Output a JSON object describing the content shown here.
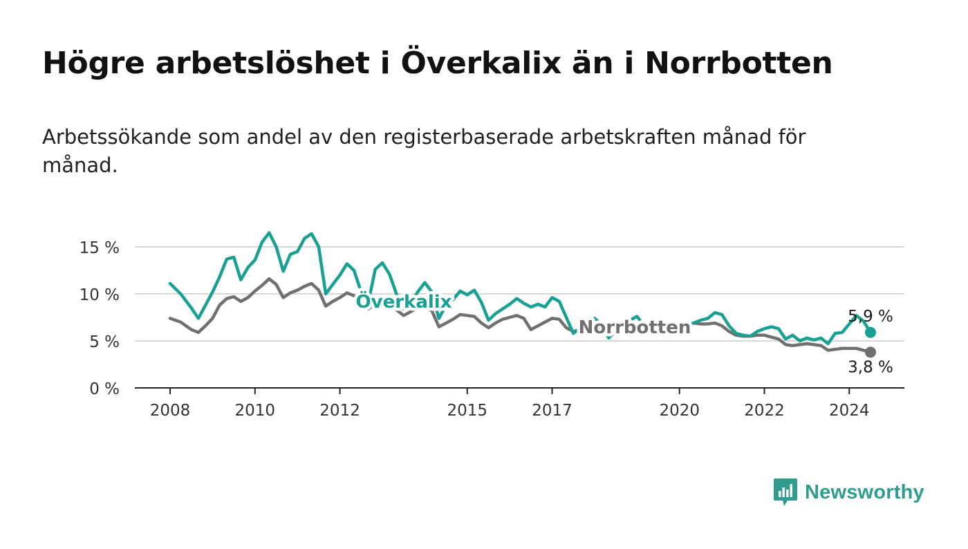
{
  "header": {
    "title": "Högre arbetslöshet i Överkalix än i Norrbotten",
    "subtitle": "Arbetssökande som andel av den registerbaserade arbetskraften månad för månad."
  },
  "brand": {
    "name": "Newsworthy",
    "icon": "bar-chart-icon",
    "color": "#2f9d8e"
  },
  "chart_data": {
    "type": "line",
    "title": "",
    "xlabel": "",
    "ylabel": "",
    "x_unit": "month",
    "xlim": [
      "2008-01",
      "2024-12"
    ],
    "ylim": [
      0,
      16
    ],
    "y_ticks": [
      0,
      5,
      10,
      15
    ],
    "y_tick_labels": [
      "0 %",
      "5 %",
      "10 %",
      "15 %"
    ],
    "x_ticks": [
      "2008-01",
      "2010-01",
      "2012-01",
      "2015-01",
      "2017-01",
      "2020-01",
      "2022-01",
      "2024-01"
    ],
    "x_tick_labels": [
      "2008",
      "2010",
      "2012",
      "2015",
      "2017",
      "2020",
      "2022",
      "2024"
    ],
    "grid": true,
    "legend": "inline labels",
    "series": [
      {
        "name": "Överkalix",
        "color": "#18a092",
        "end_label": "5,9 %",
        "points": [
          [
            "2008-01",
            11.1
          ],
          [
            "2008-04",
            10.0
          ],
          [
            "2008-07",
            8.5
          ],
          [
            "2008-09",
            7.4
          ],
          [
            "2008-11",
            8.8
          ],
          [
            "2009-01",
            10.2
          ],
          [
            "2009-03",
            11.8
          ],
          [
            "2009-05",
            13.7
          ],
          [
            "2009-07",
            13.9
          ],
          [
            "2009-09",
            11.5
          ],
          [
            "2009-11",
            12.8
          ],
          [
            "2010-01",
            13.6
          ],
          [
            "2010-03",
            15.5
          ],
          [
            "2010-05",
            16.5
          ],
          [
            "2010-07",
            15.0
          ],
          [
            "2010-09",
            12.4
          ],
          [
            "2010-11",
            14.2
          ],
          [
            "2011-01",
            14.5
          ],
          [
            "2011-03",
            15.9
          ],
          [
            "2011-05",
            16.4
          ],
          [
            "2011-07",
            15.0
          ],
          [
            "2011-09",
            10.0
          ],
          [
            "2011-11",
            11.0
          ],
          [
            "2012-01",
            12.0
          ],
          [
            "2012-03",
            13.2
          ],
          [
            "2012-05",
            12.5
          ],
          [
            "2012-07",
            10.2
          ],
          [
            "2012-09",
            9.0
          ],
          [
            "2012-11",
            12.6
          ],
          [
            "2013-01",
            13.3
          ],
          [
            "2013-03",
            12.1
          ],
          [
            "2013-05",
            10.0
          ],
          [
            "2013-07",
            8.4
          ],
          [
            "2013-09",
            9.0
          ],
          [
            "2013-11",
            10.2
          ],
          [
            "2014-01",
            11.2
          ],
          [
            "2014-03",
            10.2
          ],
          [
            "2014-05",
            7.4
          ],
          [
            "2014-07",
            8.8
          ],
          [
            "2014-09",
            9.4
          ],
          [
            "2014-11",
            10.3
          ],
          [
            "2015-01",
            9.9
          ],
          [
            "2015-03",
            10.4
          ],
          [
            "2015-05",
            9.1
          ],
          [
            "2015-07",
            7.2
          ],
          [
            "2015-09",
            7.9
          ],
          [
            "2015-11",
            8.4
          ],
          [
            "2016-01",
            8.9
          ],
          [
            "2016-03",
            9.5
          ],
          [
            "2016-05",
            9.0
          ],
          [
            "2016-07",
            8.6
          ],
          [
            "2016-09",
            8.9
          ],
          [
            "2016-11",
            8.6
          ],
          [
            "2017-01",
            9.6
          ],
          [
            "2017-03",
            9.2
          ],
          [
            "2017-05",
            7.5
          ],
          [
            "2017-07",
            5.8
          ],
          [
            "2017-09",
            6.4
          ],
          [
            "2017-11",
            7.0
          ],
          [
            "2018-01",
            7.4
          ],
          [
            "2018-03",
            6.7
          ],
          [
            "2018-05",
            5.3
          ],
          [
            "2018-07",
            6.1
          ],
          [
            "2018-09",
            6.7
          ],
          [
            "2018-11",
            7.2
          ],
          [
            "2019-01",
            7.6
          ],
          [
            "2019-03",
            6.6
          ],
          [
            "2019-05",
            5.9
          ],
          [
            "2019-07",
            6.3
          ],
          [
            "2019-09",
            6.8
          ],
          [
            "2019-11",
            6.6
          ],
          [
            "2020-01",
            6.4
          ],
          [
            "2020-03",
            6.6
          ],
          [
            "2020-05",
            6.9
          ],
          [
            "2020-07",
            7.2
          ],
          [
            "2020-09",
            7.4
          ],
          [
            "2020-11",
            8.0
          ],
          [
            "2021-01",
            7.8
          ],
          [
            "2021-03",
            6.6
          ],
          [
            "2021-05",
            5.8
          ],
          [
            "2021-07",
            5.6
          ],
          [
            "2021-09",
            5.5
          ],
          [
            "2021-11",
            6.0
          ],
          [
            "2022-01",
            6.3
          ],
          [
            "2022-03",
            6.5
          ],
          [
            "2022-05",
            6.3
          ],
          [
            "2022-07",
            5.2
          ],
          [
            "2022-09",
            5.6
          ],
          [
            "2022-11",
            5.0
          ],
          [
            "2023-01",
            5.3
          ],
          [
            "2023-03",
            5.1
          ],
          [
            "2023-05",
            5.3
          ],
          [
            "2023-07",
            4.7
          ],
          [
            "2023-09",
            5.8
          ],
          [
            "2023-11",
            5.9
          ],
          [
            "2024-01",
            6.8
          ],
          [
            "2024-03",
            7.7
          ],
          [
            "2024-05",
            7.1
          ],
          [
            "2024-07",
            5.9
          ]
        ]
      },
      {
        "name": "Norrbotten",
        "color": "#707070",
        "end_label": "3,8 %",
        "points": [
          [
            "2008-01",
            7.4
          ],
          [
            "2008-04",
            7.0
          ],
          [
            "2008-07",
            6.2
          ],
          [
            "2008-09",
            5.9
          ],
          [
            "2008-11",
            6.6
          ],
          [
            "2009-01",
            7.4
          ],
          [
            "2009-03",
            8.8
          ],
          [
            "2009-05",
            9.5
          ],
          [
            "2009-07",
            9.7
          ],
          [
            "2009-09",
            9.2
          ],
          [
            "2009-11",
            9.6
          ],
          [
            "2010-01",
            10.3
          ],
          [
            "2010-03",
            10.9
          ],
          [
            "2010-05",
            11.6
          ],
          [
            "2010-07",
            11.0
          ],
          [
            "2010-09",
            9.6
          ],
          [
            "2010-11",
            10.1
          ],
          [
            "2011-01",
            10.4
          ],
          [
            "2011-03",
            10.8
          ],
          [
            "2011-05",
            11.1
          ],
          [
            "2011-07",
            10.4
          ],
          [
            "2011-09",
            8.7
          ],
          [
            "2011-11",
            9.2
          ],
          [
            "2012-01",
            9.6
          ],
          [
            "2012-03",
            10.1
          ],
          [
            "2012-05",
            9.8
          ],
          [
            "2012-07",
            9.2
          ],
          [
            "2012-09",
            8.4
          ],
          [
            "2012-11",
            8.9
          ],
          [
            "2013-01",
            9.3
          ],
          [
            "2013-03",
            9.0
          ],
          [
            "2013-05",
            8.3
          ],
          [
            "2013-07",
            7.7
          ],
          [
            "2013-09",
            8.1
          ],
          [
            "2013-11",
            8.5
          ],
          [
            "2014-01",
            8.6
          ],
          [
            "2014-03",
            8.2
          ],
          [
            "2014-05",
            6.5
          ],
          [
            "2014-07",
            6.9
          ],
          [
            "2014-09",
            7.3
          ],
          [
            "2014-11",
            7.8
          ],
          [
            "2015-01",
            7.7
          ],
          [
            "2015-03",
            7.6
          ],
          [
            "2015-05",
            6.9
          ],
          [
            "2015-07",
            6.4
          ],
          [
            "2015-09",
            6.9
          ],
          [
            "2015-11",
            7.3
          ],
          [
            "2016-01",
            7.5
          ],
          [
            "2016-03",
            7.7
          ],
          [
            "2016-05",
            7.4
          ],
          [
            "2016-07",
            6.2
          ],
          [
            "2016-09",
            6.6
          ],
          [
            "2016-11",
            7.0
          ],
          [
            "2017-01",
            7.4
          ],
          [
            "2017-03",
            7.3
          ],
          [
            "2017-05",
            6.4
          ],
          [
            "2017-07",
            6.0
          ],
          [
            "2017-09",
            6.2
          ],
          [
            "2017-11",
            6.3
          ],
          [
            "2018-01",
            6.4
          ],
          [
            "2018-03",
            6.2
          ],
          [
            "2018-05",
            5.6
          ],
          [
            "2018-07",
            5.9
          ],
          [
            "2018-09",
            6.0
          ],
          [
            "2018-11",
            6.1
          ],
          [
            "2019-01",
            6.2
          ],
          [
            "2019-03",
            6.1
          ],
          [
            "2019-05",
            5.8
          ],
          [
            "2019-07",
            6.0
          ],
          [
            "2019-09",
            6.3
          ],
          [
            "2019-11",
            6.4
          ],
          [
            "2020-01",
            6.4
          ],
          [
            "2020-03",
            6.6
          ],
          [
            "2020-05",
            6.9
          ],
          [
            "2020-07",
            6.8
          ],
          [
            "2020-09",
            6.8
          ],
          [
            "2020-11",
            6.9
          ],
          [
            "2021-01",
            6.6
          ],
          [
            "2021-03",
            6.0
          ],
          [
            "2021-05",
            5.6
          ],
          [
            "2021-07",
            5.5
          ],
          [
            "2021-09",
            5.5
          ],
          [
            "2021-11",
            5.6
          ],
          [
            "2022-01",
            5.6
          ],
          [
            "2022-03",
            5.4
          ],
          [
            "2022-05",
            5.2
          ],
          [
            "2022-07",
            4.6
          ],
          [
            "2022-09",
            4.5
          ],
          [
            "2022-11",
            4.6
          ],
          [
            "2023-01",
            4.7
          ],
          [
            "2023-03",
            4.6
          ],
          [
            "2023-05",
            4.5
          ],
          [
            "2023-07",
            4.0
          ],
          [
            "2023-09",
            4.1
          ],
          [
            "2023-11",
            4.2
          ],
          [
            "2024-01",
            4.2
          ],
          [
            "2024-03",
            4.2
          ],
          [
            "2024-05",
            4.0
          ],
          [
            "2024-07",
            3.8
          ]
        ]
      }
    ]
  }
}
